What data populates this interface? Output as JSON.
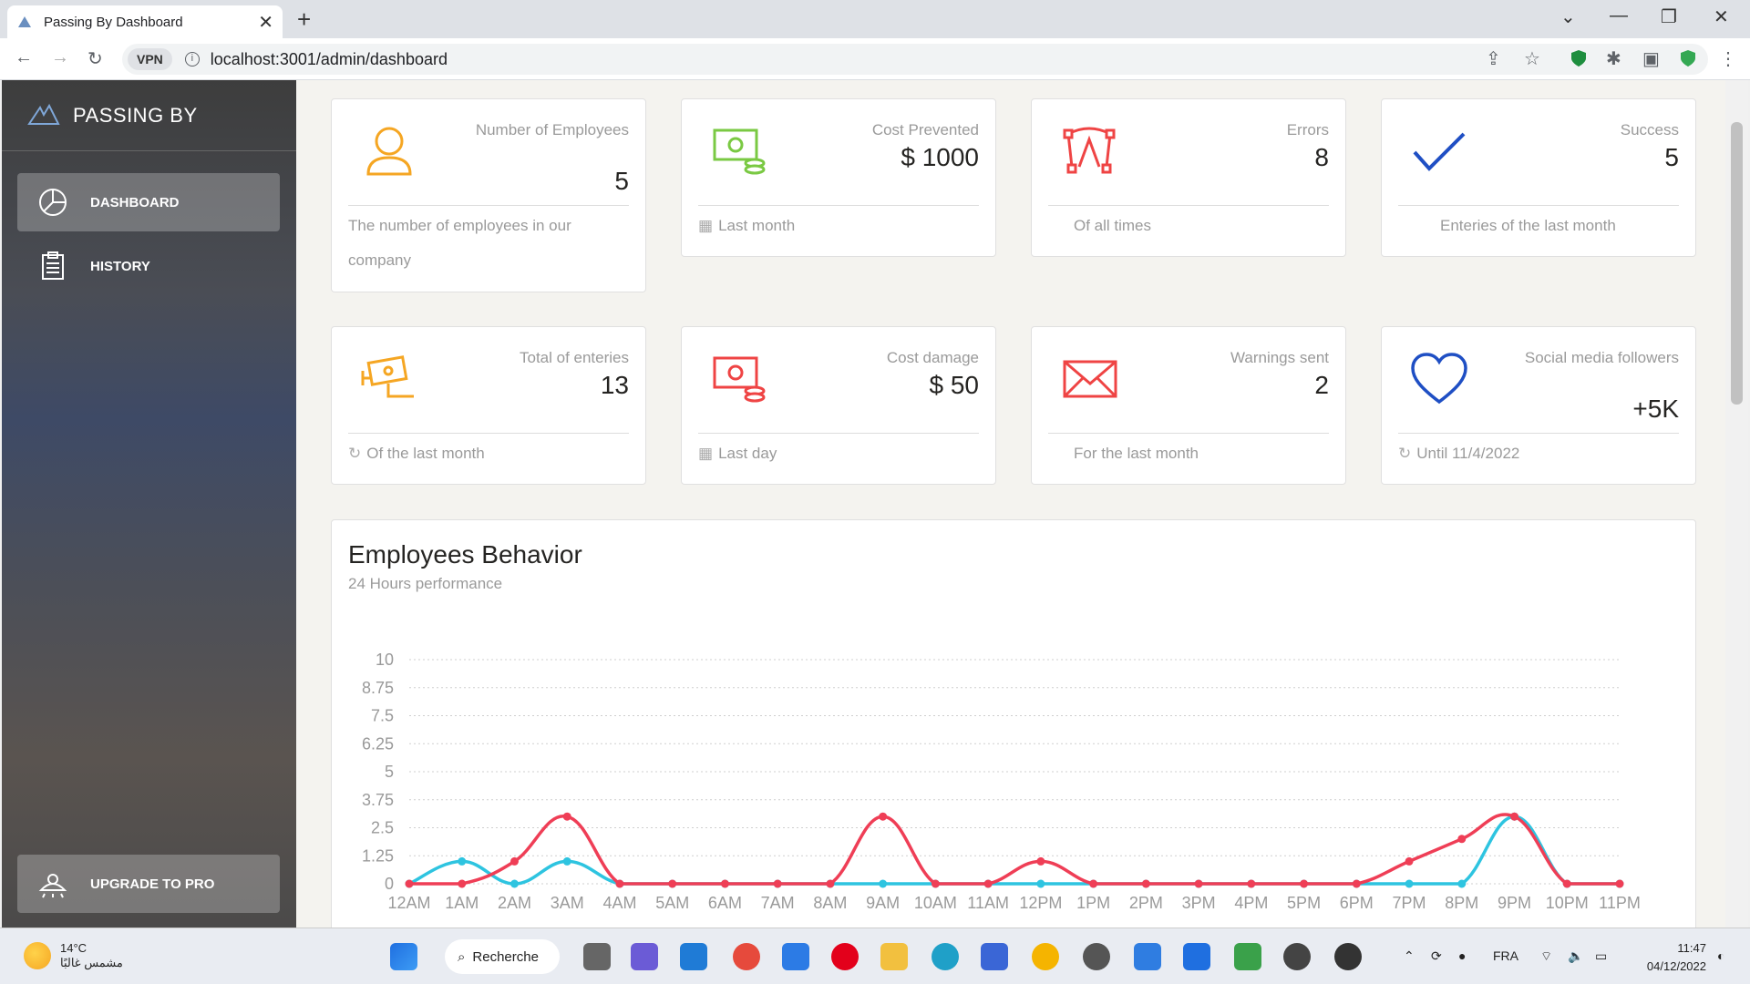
{
  "browser": {
    "tab_title": "Passing By Dashboard",
    "vpn_label": "VPN",
    "url": "localhost:3001/admin/dashboard"
  },
  "sidebar": {
    "brand": "PASSING BY",
    "items": [
      {
        "label": "DASHBOARD",
        "icon": "pie-chart-icon",
        "active": true
      },
      {
        "label": "HISTORY",
        "icon": "clipboard-icon",
        "active": false
      }
    ],
    "upgrade_label": "UPGRADE TO PRO"
  },
  "cards": [
    {
      "label": "Number of Employees",
      "value": "5",
      "footer": "The number of employees in our company",
      "icon": "person-icon",
      "color": "#ef8157"
    },
    {
      "label": "Cost Prevented",
      "value": "$ 1000",
      "footer": "Last month",
      "icon": "money-icon",
      "color": "#6bd098"
    },
    {
      "label": "Errors",
      "value": "8",
      "footer": "Of all times",
      "icon": "vector-icon",
      "color": "#ef4444"
    },
    {
      "label": "Success",
      "value": "5",
      "footer": "Enteries of the last month",
      "icon": "check-icon",
      "color": "#2a52be"
    },
    {
      "label": "Total of enteries",
      "value": "13",
      "footer": "Of the last month",
      "icon": "camera-icon",
      "color": "#f5a623"
    },
    {
      "label": "Cost damage",
      "value": "$ 50",
      "footer": "Last day",
      "icon": "money-icon",
      "color": "#ef4444"
    },
    {
      "label": "Warnings sent",
      "value": "2",
      "footer": "For the last month",
      "icon": "envelope-icon",
      "color": "#ef4444"
    },
    {
      "label": "Social media followers",
      "value": "+5K",
      "footer": "Until 11/4/2022",
      "icon": "heart-icon",
      "color": "#2a52be"
    }
  ],
  "chart_title": "Employees Behavior",
  "chart_subtitle": "24 Hours performance",
  "chart_data": {
    "type": "line",
    "categories": [
      "12AM",
      "1AM",
      "2AM",
      "3AM",
      "4AM",
      "5AM",
      "6AM",
      "7AM",
      "8AM",
      "9AM",
      "10AM",
      "11AM",
      "12PM",
      "1PM",
      "2PM",
      "3PM",
      "4PM",
      "5PM",
      "6PM",
      "7PM",
      "8PM",
      "9PM",
      "10PM",
      "11PM"
    ],
    "yticks": [
      "0",
      "1.25",
      "2.5",
      "3.75",
      "5",
      "6.25",
      "7.5",
      "8.75",
      "10"
    ],
    "ylim": [
      0,
      10
    ],
    "grid": true,
    "series": [
      {
        "color": "#2ec4e0",
        "values": [
          0,
          1,
          0,
          1,
          0,
          0,
          0,
          0,
          0,
          0,
          0,
          0,
          0,
          0,
          0,
          0,
          0,
          0,
          0,
          0,
          0,
          3,
          0,
          0
        ]
      },
      {
        "color": "#ef3e56",
        "values": [
          0,
          0,
          1,
          3,
          0,
          0,
          0,
          0,
          0,
          3,
          0,
          0,
          1,
          0,
          0,
          0,
          0,
          0,
          0,
          1,
          2,
          3,
          0,
          0
        ]
      }
    ]
  },
  "taskbar": {
    "temperature": "14°C",
    "weather_text": "مشمس غالبًا",
    "search_label": "Recherche",
    "lang": "FRA",
    "time": "11:47",
    "date": "04/12/2022"
  }
}
